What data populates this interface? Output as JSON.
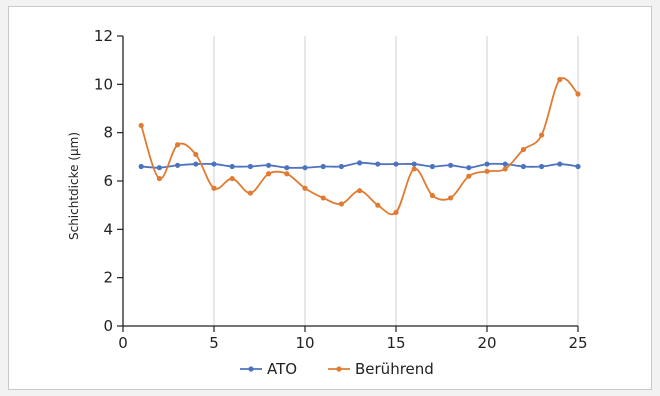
{
  "chart_data": {
    "type": "line",
    "title": "",
    "xlabel": "",
    "ylabel": "Schichtdicke (µm)",
    "xlim": [
      0,
      25
    ],
    "ylim": [
      0,
      12
    ],
    "xticks": [
      0,
      5,
      10,
      15,
      20,
      25
    ],
    "yticks": [
      0,
      2,
      4,
      6,
      8,
      10,
      12
    ],
    "grid": "vertical",
    "legend_position": "bottom",
    "x": [
      1,
      2,
      3,
      4,
      5,
      6,
      7,
      8,
      9,
      10,
      11,
      12,
      13,
      14,
      15,
      16,
      17,
      18,
      19,
      20,
      21,
      22,
      23,
      24,
      25
    ],
    "series": [
      {
        "name": "ATO",
        "color": "#4e73be",
        "values": [
          6.6,
          6.55,
          6.65,
          6.7,
          6.7,
          6.6,
          6.6,
          6.65,
          6.55,
          6.55,
          6.6,
          6.6,
          6.75,
          6.7,
          6.7,
          6.7,
          6.6,
          6.65,
          6.55,
          6.7,
          6.7,
          6.6,
          6.6,
          6.7,
          6.6
        ]
      },
      {
        "name": "Berührend",
        "color": "#e07b32",
        "values": [
          8.3,
          6.1,
          7.5,
          7.1,
          5.7,
          6.1,
          5.5,
          6.3,
          6.3,
          5.7,
          5.3,
          5.05,
          5.6,
          5.0,
          4.7,
          6.5,
          5.4,
          5.3,
          6.2,
          6.4,
          6.5,
          7.3,
          7.9,
          10.2,
          9.6
        ]
      }
    ]
  }
}
